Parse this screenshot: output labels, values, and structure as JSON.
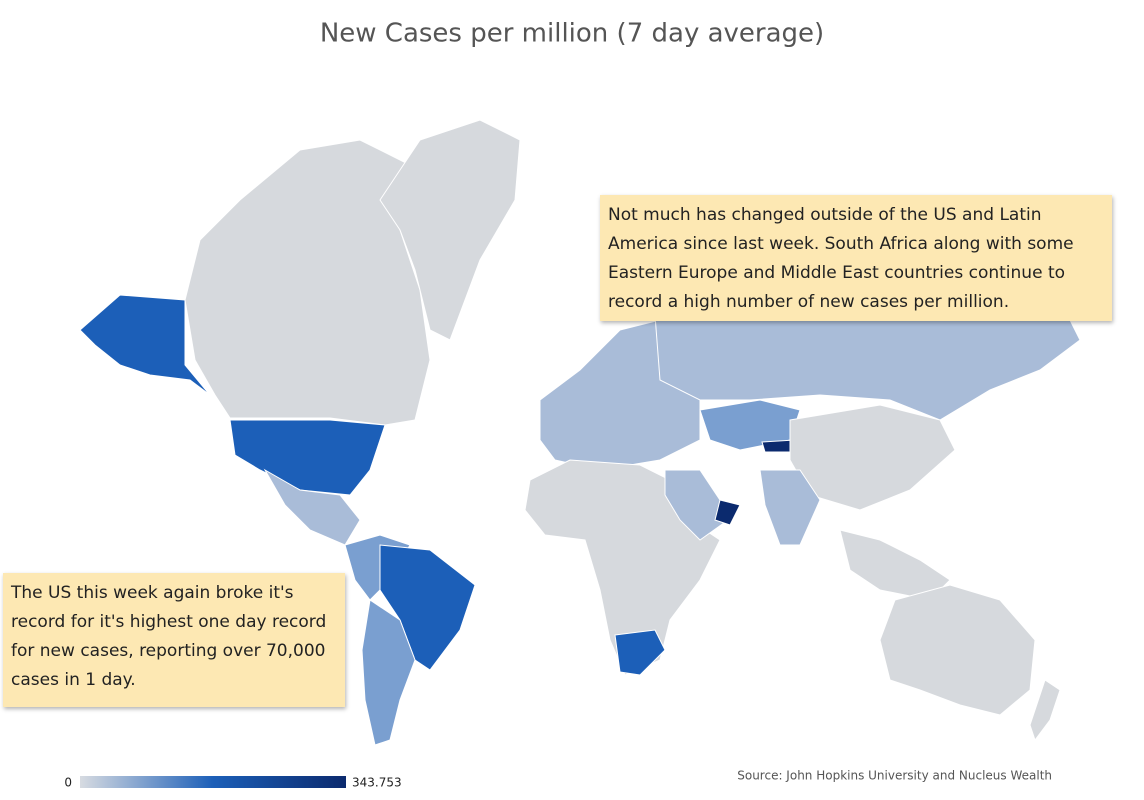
{
  "title": "New Cases per million (7 day average)",
  "annotations": [
    "Not much has changed outside of the US and Latin America since last week. South Africa along with some Eastern Europe and Middle East countries continue to record a high number of new cases per million.",
    "The US this week again broke it's record for it's highest one day record for new cases, reporting over 70,000 cases in 1 day."
  ],
  "legend": {
    "min": 0,
    "max": 343.753,
    "colors": [
      "#d7dbe1",
      "#1c5fb8",
      "#0b2a6e"
    ]
  },
  "source": "Source: John Hopkins University and Nucleus Wealth"
}
